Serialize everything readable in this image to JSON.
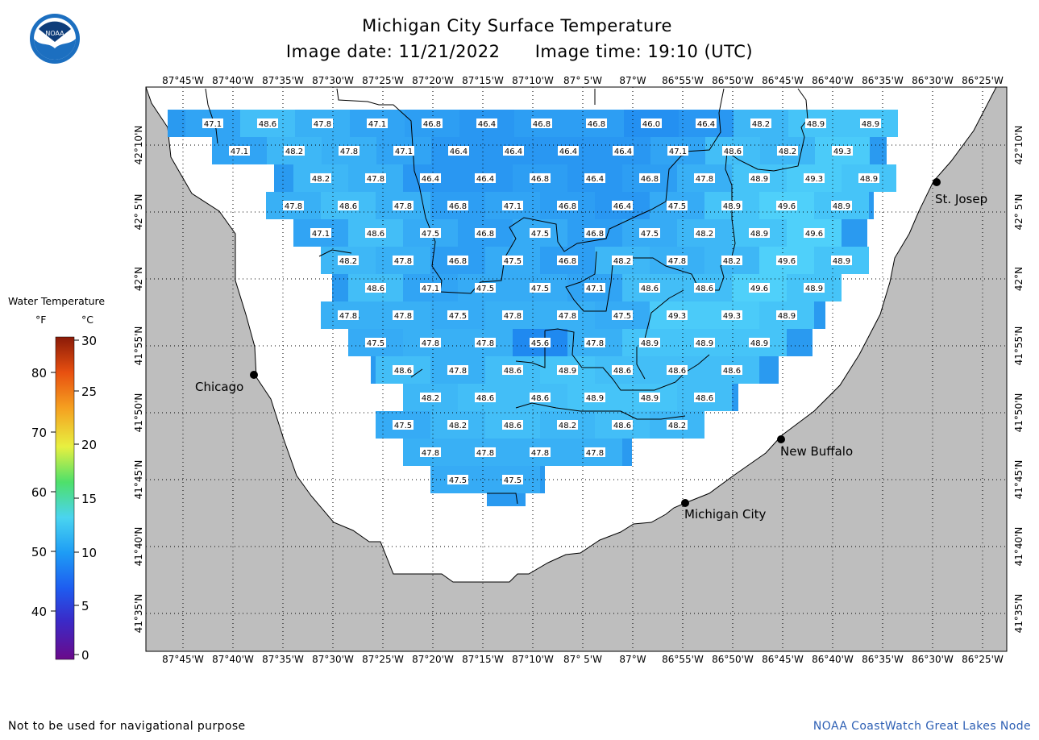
{
  "header": {
    "title": "Michigan City Surface Temperature",
    "image_date_label": "Image date: 11/21/2022",
    "image_time_label": "Image time: 19:10 (UTC)"
  },
  "logo": {
    "text": "NOAA",
    "icon": "noaa-logo-icon"
  },
  "legend": {
    "title": "Water Temperature",
    "unit_f": "°F",
    "unit_c": "°C",
    "f_ticks": [
      "80",
      "70",
      "60",
      "50",
      "40"
    ],
    "c_ticks": [
      "30",
      "25",
      "20",
      "15",
      "10",
      "5",
      "0"
    ],
    "colors": [
      "#6a0a8a",
      "#3a2ac8",
      "#1e5cf0",
      "#1e9cf5",
      "#4ad4f0",
      "#4ee06a",
      "#e8f040",
      "#f5a020",
      "#e85010",
      "#8a1a08"
    ]
  },
  "axes": {
    "lon_labels": [
      "87°45'W",
      "87°40'W",
      "87°35'W",
      "87°30'W",
      "87°25'W",
      "87°20'W",
      "87°15'W",
      "87°10'W",
      "87° 5'W",
      "87°W",
      "86°55'W",
      "86°50'W",
      "86°45'W",
      "86°40'W",
      "86°35'W",
      "86°30'W",
      "86°25'W"
    ],
    "lat_labels": [
      "42°10'N",
      "42° 5'N",
      "42°N",
      "41°55'N",
      "41°50'N",
      "41°45'N",
      "41°40'N",
      "41°35'N"
    ]
  },
  "cities": [
    {
      "name": "Chicago"
    },
    {
      "name": "St. Josep"
    },
    {
      "name": "New Buffalo"
    },
    {
      "name": "Michigan City"
    }
  ],
  "temps": [
    [
      "47.1",
      "48.6",
      "47.8",
      "47.1",
      "46.8",
      "46.4",
      "46.8",
      "46.8",
      "46.0",
      "46.4",
      "48.2",
      "48.9",
      "48.9"
    ],
    [
      "47.1",
      "48.2",
      "47.8",
      "47.1",
      "46.4",
      "46.4",
      "46.4",
      "46.4",
      "47.1",
      "48.6",
      "48.2",
      "49.3"
    ],
    [
      "48.2",
      "47.8",
      "46.4",
      "46.4",
      "46.8",
      "46.4",
      "46.8",
      "47.8",
      "48.9",
      "49.3",
      "48.9"
    ],
    [
      "47.8",
      "48.6",
      "47.8",
      "46.8",
      "47.1",
      "46.8",
      "46.4",
      "47.5",
      "48.9",
      "49.6",
      "48.9"
    ],
    [
      "47.1",
      "48.6",
      "47.5",
      "46.8",
      "47.5",
      "46.8",
      "47.5",
      "48.2",
      "48.9",
      "49.6"
    ],
    [
      "48.2",
      "47.8",
      "46.8",
      "47.5",
      "46.8",
      "48.2",
      "47.8",
      "48.2",
      "49.6",
      "48.9"
    ],
    [
      "48.6",
      "47.1",
      "47.5",
      "47.5",
      "47.1",
      "48.6",
      "48.6",
      "49.6",
      "48.9"
    ],
    [
      "47.8",
      "47.8",
      "47.5",
      "47.8",
      "47.8",
      "47.5",
      "49.3",
      "49.3",
      "48.9"
    ],
    [
      "47.5",
      "47.8",
      "47.8",
      "45.6",
      "47.8",
      "48.9",
      "48.9",
      "48.9"
    ],
    [
      "48.6",
      "47.8",
      "48.6",
      "48.9",
      "48.6",
      "48.6",
      "48.6"
    ],
    [
      "48.2",
      "48.6",
      "48.6",
      "48.9",
      "48.9",
      "48.6"
    ],
    [
      "47.5",
      "48.2",
      "48.6",
      "48.2",
      "48.6",
      "48.2"
    ],
    [
      "47.8",
      "47.8",
      "47.8",
      "47.8"
    ],
    [
      "47.5",
      "47.5"
    ]
  ],
  "footer": {
    "disclaimer": "Not to be used for navigational purpose",
    "credit": "NOAA CoastWatch Great Lakes Node"
  }
}
